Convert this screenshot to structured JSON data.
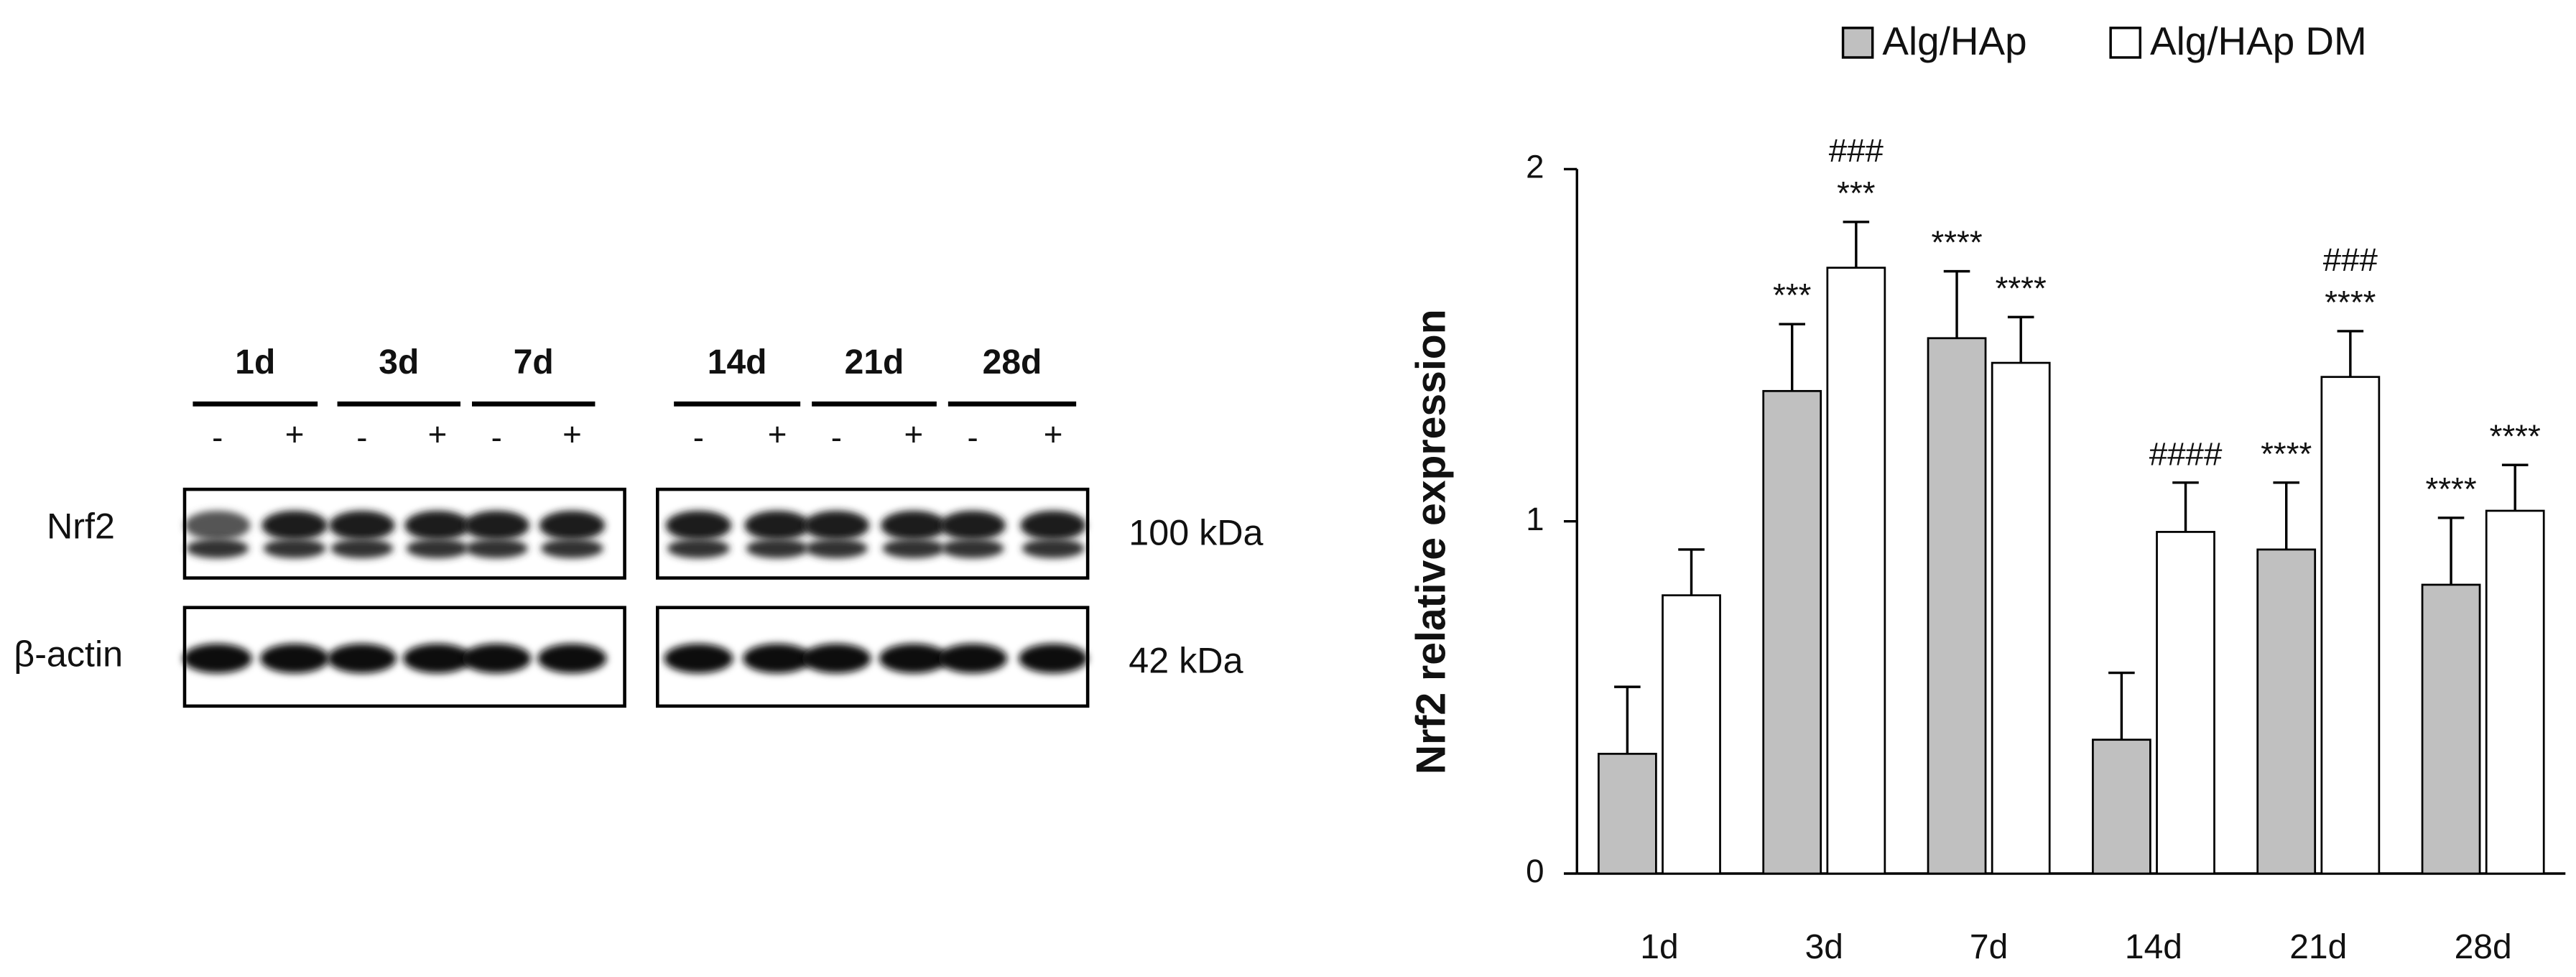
{
  "blot": {
    "lanes_left": [
      "1d",
      "3d",
      "7d"
    ],
    "lanes_right": [
      "14d",
      "21d",
      "28d"
    ],
    "signs": [
      "-",
      "+"
    ],
    "rows": [
      {
        "label": "Nrf2",
        "size": "100 kDa"
      },
      {
        "label": "β-actin",
        "size": "42 kDa"
      }
    ]
  },
  "chart_data": {
    "type": "bar",
    "ylabel": "Nrf2 relative expression",
    "categories": [
      "1d",
      "3d",
      "7d",
      "14d",
      "21d",
      "28d"
    ],
    "ylim": [
      0,
      2
    ],
    "yticks": [
      0,
      1,
      2
    ],
    "grid": false,
    "legend": "top",
    "series": [
      {
        "name": "Alg/HAp",
        "color": "#c0c0c0",
        "values": [
          0.34,
          1.37,
          1.52,
          0.38,
          0.92,
          0.82
        ],
        "errors": [
          0.19,
          0.19,
          0.19,
          0.19,
          0.19,
          0.19
        ],
        "annotations": [
          [],
          [
            "***"
          ],
          [
            "****"
          ],
          [],
          [
            "****"
          ],
          [
            "****"
          ]
        ]
      },
      {
        "name": "Alg/HAp DM",
        "color": "#ffffff",
        "values": [
          0.79,
          1.72,
          1.45,
          0.97,
          1.41,
          1.03
        ],
        "errors": [
          0.13,
          0.13,
          0.13,
          0.14,
          0.13,
          0.13
        ],
        "annotations": [
          [],
          [
            "###",
            "***"
          ],
          [
            "****"
          ],
          [
            "####"
          ],
          [
            "###",
            "****"
          ],
          [
            "****"
          ]
        ]
      }
    ]
  }
}
